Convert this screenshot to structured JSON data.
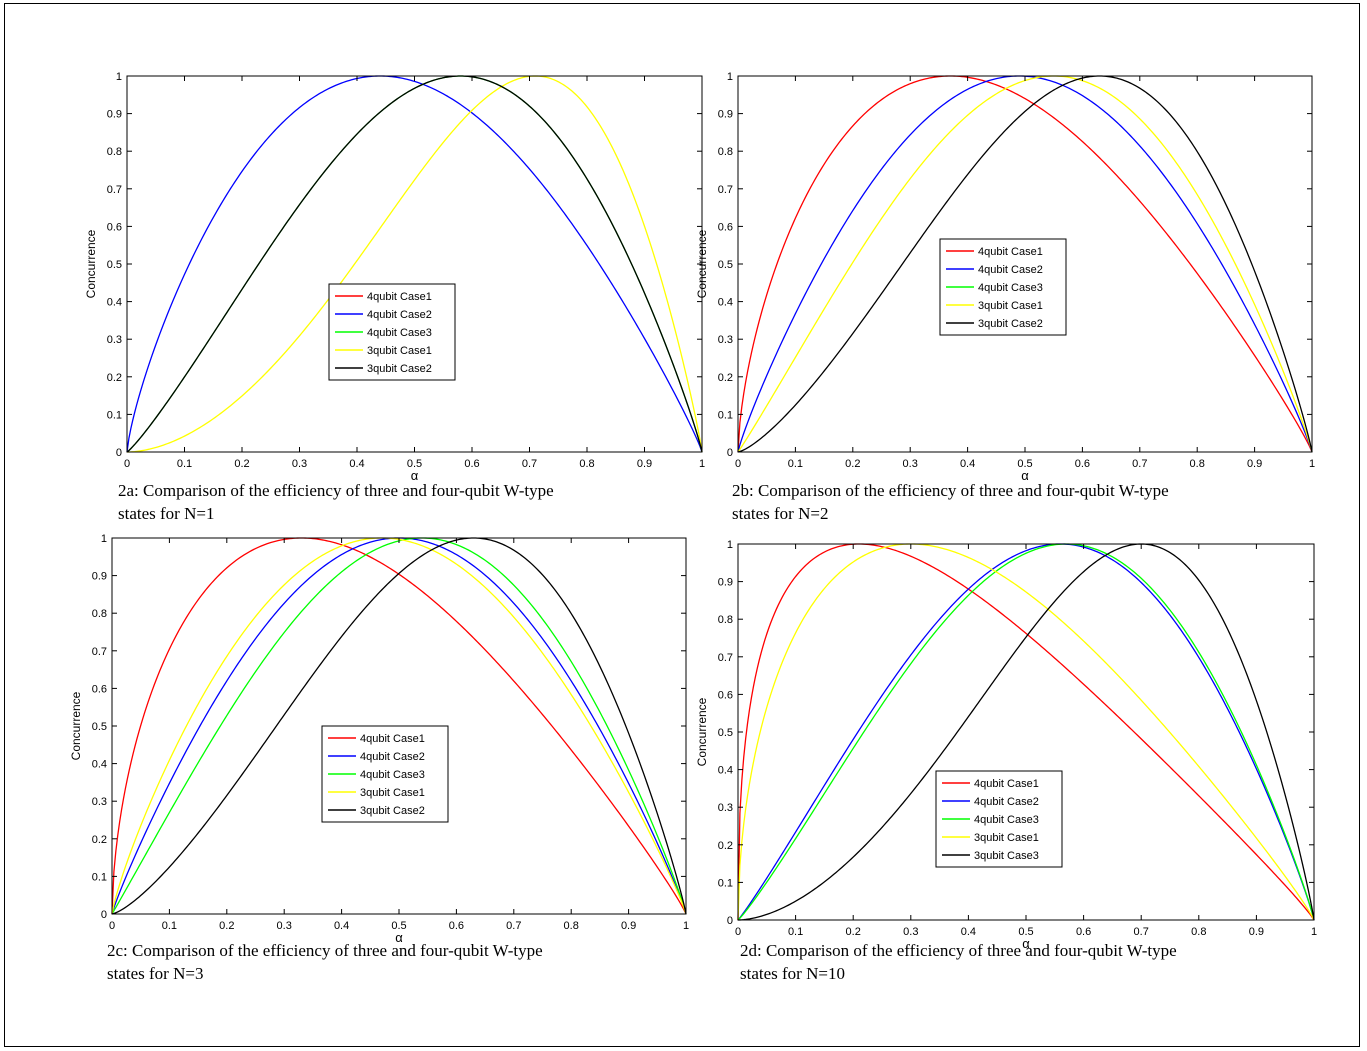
{
  "panels": [
    {
      "caption_line1": "2a: Comparison of the efficiency of three and four-qubit W-type",
      "caption_line2": "states for N=1",
      "chart_data": {
        "type": "line",
        "xlabel": "α",
        "ylabel": "Concurrence",
        "xlim": [
          0,
          1
        ],
        "ylim": [
          0,
          1
        ],
        "xticks": [
          "0",
          "0.1",
          "0.2",
          "0.3",
          "0.4",
          "0.5",
          "0.6",
          "0.7",
          "0.8",
          "0.9",
          "1"
        ],
        "yticks": [
          "0",
          "0.1",
          "0.2",
          "0.3",
          "0.4",
          "0.5",
          "0.6",
          "0.7",
          "0.8",
          "0.9",
          "1"
        ],
        "grid": false,
        "legend_position": "center",
        "legend": [
          "4qubit Case1",
          "4qubit Case2",
          "4qubit Case3",
          "3qubit Case1",
          "3qubit Case2"
        ],
        "series": [
          {
            "name": "4qubit Case1",
            "color": "#ff0000",
            "peak_x": 0.44,
            "visible": false
          },
          {
            "name": "4qubit Case2",
            "color": "#0000ff",
            "peak_x": 0.44
          },
          {
            "name": "4qubit Case3",
            "color": "#00ff00",
            "peak_x": 0.58
          },
          {
            "name": "3qubit Case1",
            "color": "#ffff00",
            "peak_x": 0.71
          },
          {
            "name": "3qubit Case2",
            "color": "#000000",
            "peak_x": 0.58
          }
        ]
      }
    },
    {
      "caption_line1": "2b: Comparison of the efficiency of three and four-qubit W-type",
      "caption_line2": "states for N=2",
      "chart_data": {
        "type": "line",
        "xlabel": "α",
        "ylabel": "Concurrence",
        "xlim": [
          0,
          1
        ],
        "ylim": [
          0,
          1
        ],
        "xticks": [
          "0",
          "0.1",
          "0.2",
          "0.3",
          "0.4",
          "0.5",
          "0.6",
          "0.7",
          "0.8",
          "0.9",
          "1"
        ],
        "yticks": [
          "0",
          "0.1",
          "0.2",
          "0.3",
          "0.4",
          "0.5",
          "0.6",
          "0.7",
          "0.8",
          "0.9",
          "1"
        ],
        "grid": false,
        "legend_position": "center-left",
        "legend": [
          "4qubit Case1",
          "4qubit Case2",
          "4qubit Case3",
          "3qubit Case1",
          "3qubit Case2"
        ],
        "series": [
          {
            "name": "4qubit Case1",
            "color": "#ff0000",
            "peak_x": 0.37
          },
          {
            "name": "4qubit Case2",
            "color": "#0000ff",
            "peak_x": 0.49
          },
          {
            "name": "4qubit Case3",
            "color": "#00ff00",
            "peak_x": 0.49,
            "visible": false
          },
          {
            "name": "3qubit Case1",
            "color": "#ffff00",
            "peak_x": 0.55
          },
          {
            "name": "3qubit Case2",
            "color": "#000000",
            "peak_x": 0.63
          }
        ]
      }
    },
    {
      "caption_line1": "2c: Comparison of the efficiency of three and four-qubit W-type",
      "caption_line2": "states for N=3",
      "chart_data": {
        "type": "line",
        "xlabel": "α",
        "ylabel": "Concurrence",
        "xlim": [
          0,
          1
        ],
        "ylim": [
          0,
          1
        ],
        "xticks": [
          "0",
          "0.1",
          "0.2",
          "0.3",
          "0.4",
          "0.5",
          "0.6",
          "0.7",
          "0.8",
          "0.9",
          "1"
        ],
        "yticks": [
          "0",
          "0.1",
          "0.2",
          "0.3",
          "0.4",
          "0.5",
          "0.6",
          "0.7",
          "0.8",
          "0.9",
          "1"
        ],
        "grid": false,
        "legend_position": "center-right",
        "legend": [
          "4qubit Case1",
          "4qubit Case2",
          "4qubit Case3",
          "3qubit Case1",
          "3qubit Case2"
        ],
        "series": [
          {
            "name": "4qubit Case1",
            "color": "#ff0000",
            "peak_x": 0.33
          },
          {
            "name": "4qubit Case2",
            "color": "#0000ff",
            "peak_x": 0.5
          },
          {
            "name": "4qubit Case3",
            "color": "#00ff00",
            "peak_x": 0.54
          },
          {
            "name": "3qubit Case1",
            "color": "#ffff00",
            "peak_x": 0.47
          },
          {
            "name": "3qubit Case2",
            "color": "#000000",
            "peak_x": 0.63
          }
        ]
      }
    },
    {
      "caption_line1": "2d: Comparison of the efficiency of three and four-qubit W-type",
      "caption_line2": "states for N=10",
      "chart_data": {
        "type": "line",
        "xlabel": "α",
        "ylabel": "Concurrence",
        "xlim": [
          0,
          1
        ],
        "ylim": [
          0,
          1
        ],
        "xticks": [
          "0",
          "0.1",
          "0.2",
          "0.3",
          "0.4",
          "0.5",
          "0.6",
          "0.7",
          "0.8",
          "0.9",
          "1"
        ],
        "yticks": [
          "0",
          "0.1",
          "0.2",
          "0.3",
          "0.4",
          "0.5",
          "0.6",
          "0.7",
          "0.8",
          "0.9",
          "1"
        ],
        "grid": false,
        "legend_position": "center-left",
        "legend": [
          "4qubit Case1",
          "4qubit Case2",
          "4qubit Case3",
          "3qubit Case1",
          "3qubit Case3"
        ],
        "series": [
          {
            "name": "4qubit Case1",
            "color": "#ff0000",
            "peak_x": 0.21
          },
          {
            "name": "4qubit Case2",
            "color": "#0000ff",
            "peak_x": 0.56
          },
          {
            "name": "4qubit Case3",
            "color": "#00ff00",
            "peak_x": 0.57
          },
          {
            "name": "3qubit Case1",
            "color": "#ffff00",
            "peak_x": 0.3
          },
          {
            "name": "3qubit Case3",
            "color": "#000000",
            "peak_x": 0.7
          }
        ]
      }
    }
  ]
}
